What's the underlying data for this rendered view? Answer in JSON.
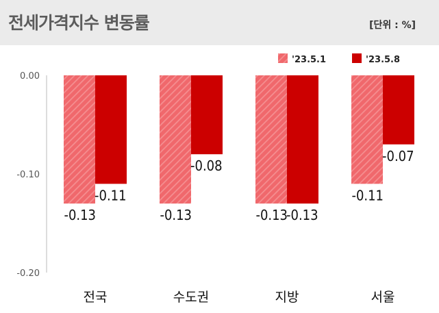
{
  "header": {
    "title": "전세가격지수 변동률",
    "unit": "[단위 : %]"
  },
  "colors": {
    "series_1": "#f0686c",
    "series_1_hatch": "#f58f91",
    "series_2": "#cc0000",
    "header_band": "#ebebeb"
  },
  "chart_data": {
    "type": "bar",
    "title": "전세가격지수 변동률",
    "unit": "%",
    "categories": [
      "전국",
      "수도권",
      "지방",
      "서울"
    ],
    "series": [
      {
        "name": "'23.5.1",
        "values": [
          -0.13,
          -0.13,
          -0.13,
          -0.11
        ]
      },
      {
        "name": "'23.5.8",
        "values": [
          -0.11,
          -0.08,
          -0.13,
          -0.07
        ]
      }
    ],
    "y_ticks": [
      "0.00",
      "-0.10",
      "-0.20"
    ],
    "ylim": [
      -0.2,
      0
    ],
    "grid": false,
    "legend": "top-right"
  }
}
